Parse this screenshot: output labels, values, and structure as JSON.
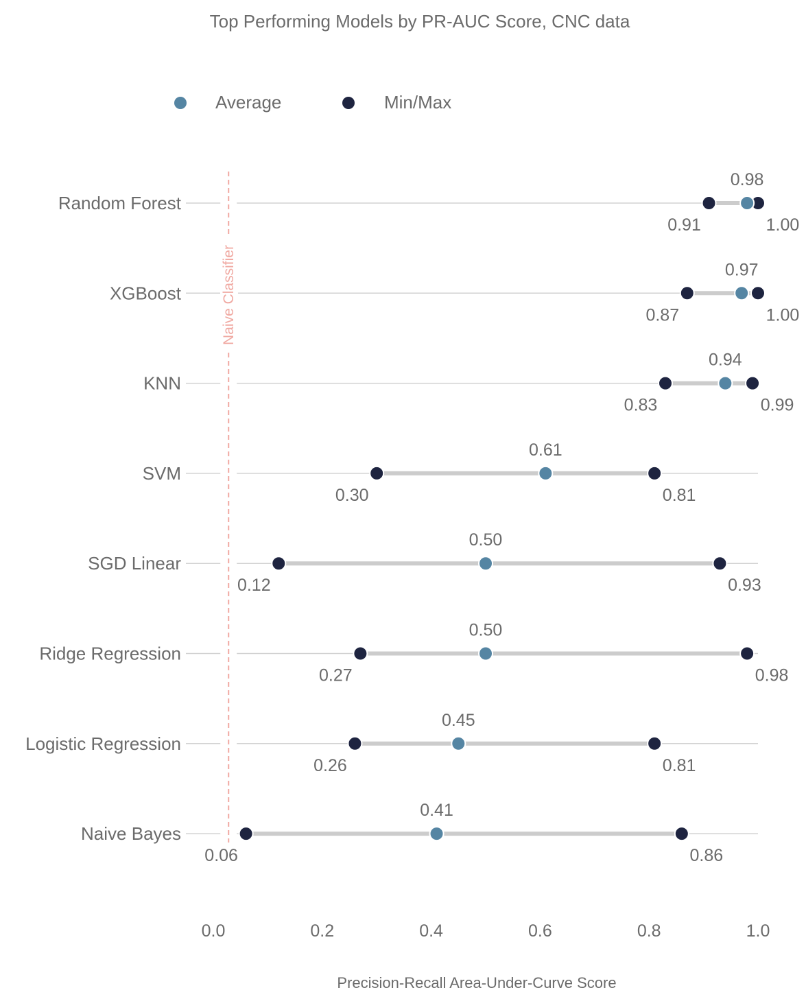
{
  "chart_data": {
    "type": "dumbbell",
    "title": "Top Performing Models by PR-AUC Score, CNC data",
    "xlabel": "Precision-Recall Area-Under-Curve Score",
    "ylabel": "",
    "xlim": [
      0.0,
      1.0
    ],
    "xticks": [
      "0.0",
      "0.2",
      "0.4",
      "0.6",
      "0.8",
      "1.0"
    ],
    "legend": [
      {
        "name": "Average",
        "color": "#5585a3"
      },
      {
        "name": "Min/Max",
        "color": "#1e2440"
      }
    ],
    "baseline": {
      "label": "Naive Classifier",
      "value": 0.028,
      "color": "#f0a9a2"
    },
    "categories": [
      "Random Forest",
      "XGBoost",
      "KNN",
      "SVM",
      "SGD Linear",
      "Ridge Regression",
      "Logistic Regression",
      "Naive Bayes"
    ],
    "series": [
      {
        "name": "Min",
        "values": [
          0.91,
          0.87,
          0.83,
          0.3,
          0.12,
          0.27,
          0.26,
          0.06
        ]
      },
      {
        "name": "Average",
        "values": [
          0.98,
          0.97,
          0.94,
          0.61,
          0.5,
          0.5,
          0.45,
          0.41
        ]
      },
      {
        "name": "Max",
        "values": [
          1.0,
          1.0,
          0.99,
          0.81,
          0.93,
          0.98,
          0.81,
          0.86
        ]
      }
    ],
    "min_labels": [
      "0.91",
      "0.87",
      "0.83",
      "0.30",
      "0.12",
      "0.27",
      "0.26",
      "0.06"
    ],
    "avg_labels": [
      "0.98",
      "0.97",
      "0.94",
      "0.61",
      "0.50",
      "0.50",
      "0.45",
      "0.41"
    ],
    "max_labels": [
      "1.00",
      "1.00",
      "0.99",
      "0.81",
      "0.93",
      "0.98",
      "0.81",
      "0.86"
    ],
    "colors": {
      "average": "#5585a3",
      "minmax": "#1e2440",
      "range": "#cccccc",
      "gridline": "#d2d2d2",
      "text": "#6b6b6b"
    }
  }
}
